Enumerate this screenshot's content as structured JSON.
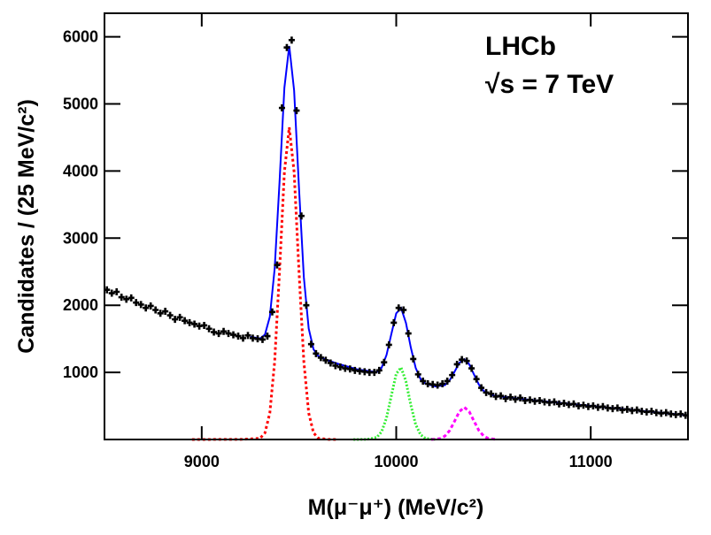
{
  "chart_data": {
    "type": "scatter",
    "x_label": "M(μ⁻μ⁺) (MeV/c²)",
    "y_label": "Candidates / (25 MeV/c²)",
    "annotations": [
      "LHCb",
      "√s = 7 TeV"
    ],
    "xlim": [
      8500,
      11500
    ],
    "ylim": [
      0,
      6350
    ],
    "xticks": [
      9000,
      10000,
      11000
    ],
    "yticks": [
      1000,
      2000,
      3000,
      4000,
      5000,
      6000
    ],
    "series": [
      {
        "type": "points",
        "color": "#000000",
        "x": [
          8512.5,
          8537.5,
          8562.5,
          8587.5,
          8612.5,
          8637.5,
          8662.5,
          8687.5,
          8712.5,
          8737.5,
          8762.5,
          8787.5,
          8812.5,
          8837.5,
          8862.5,
          8887.5,
          8912.5,
          8937.5,
          8962.5,
          8987.5,
          9012.5,
          9037.5,
          9062.5,
          9087.5,
          9112.5,
          9137.5,
          9162.5,
          9187.5,
          9212.5,
          9237.5,
          9262.5,
          9287.5,
          9312.5,
          9337.5,
          9362.5,
          9387.5,
          9412.5,
          9437.5,
          9462.5,
          9487.5,
          9512.5,
          9537.5,
          9562.5,
          9587.5,
          9612.5,
          9637.5,
          9662.5,
          9687.5,
          9712.5,
          9737.5,
          9762.5,
          9787.5,
          9812.5,
          9837.5,
          9862.5,
          9887.5,
          9912.5,
          9937.5,
          9962.5,
          9987.5,
          10012.5,
          10037.5,
          10062.5,
          10087.5,
          10112.5,
          10137.5,
          10162.5,
          10187.5,
          10212.5,
          10237.5,
          10262.5,
          10287.5,
          10312.5,
          10337.5,
          10362.5,
          10387.5,
          10412.5,
          10437.5,
          10462.5,
          10487.5,
          10512.5,
          10537.5,
          10562.5,
          10587.5,
          10612.5,
          10637.5,
          10662.5,
          10687.5,
          10712.5,
          10737.5,
          10762.5,
          10787.5,
          10812.5,
          10837.5,
          10862.5,
          10887.5,
          10912.5,
          10937.5,
          10962.5,
          10987.5,
          11012.5,
          11037.5,
          11062.5,
          11087.5,
          11112.5,
          11137.5,
          11162.5,
          11187.5,
          11212.5,
          11237.5,
          11262.5,
          11287.5,
          11312.5,
          11337.5,
          11362.5,
          11387.5,
          11412.5,
          11437.5,
          11462.5,
          11487.5
        ],
        "values": [
          2230,
          2180,
          2200,
          2120,
          2090,
          2110,
          2040,
          2010,
          1960,
          1990,
          1930,
          1880,
          1910,
          1850,
          1790,
          1820,
          1770,
          1740,
          1720,
          1690,
          1700,
          1650,
          1600,
          1580,
          1610,
          1580,
          1560,
          1540,
          1510,
          1550,
          1510,
          1500,
          1490,
          1540,
          1900,
          2600,
          4940,
          5840,
          5950,
          4900,
          3330,
          2000,
          1420,
          1280,
          1220,
          1180,
          1140,
          1100,
          1080,
          1060,
          1050,
          1030,
          1020,
          1010,
          1000,
          1000,
          1030,
          1150,
          1410,
          1740,
          1960,
          1930,
          1580,
          1200,
          970,
          870,
          830,
          820,
          810,
          830,
          870,
          960,
          1120,
          1190,
          1170,
          1060,
          900,
          770,
          700,
          680,
          640,
          650,
          610,
          630,
          600,
          620,
          580,
          590,
          570,
          580,
          560,
          550,
          560,
          530,
          540,
          520,
          530,
          500,
          510,
          490,
          500,
          480,
          490,
          470,
          460,
          470,
          440,
          450,
          430,
          440,
          420,
          410,
          420,
          400,
          390,
          400,
          380,
          370,
          380,
          360
        ]
      },
      {
        "type": "line",
        "color": "#0000ff",
        "dash": "none",
        "x": [
          9250,
          9300,
          9325,
          9350,
          9375,
          9400,
          9425,
          9450,
          9475,
          9500,
          9525,
          9550,
          9575,
          9600,
          9650,
          9700,
          9800,
          9900,
          9925,
          9950,
          9975,
          10000,
          10025,
          10050,
          10075,
          10100,
          10125,
          10150,
          10200,
          10250,
          10275,
          10300,
          10325,
          10350,
          10375,
          10400,
          10425,
          10450,
          10500,
          10600,
          10800,
          11000,
          11250,
          11500
        ],
        "values": [
          1530,
          1505,
          1562,
          1827,
          2547,
          3834,
          5240,
          5862,
          5198,
          3750,
          2418,
          1653,
          1343,
          1241,
          1176,
          1128,
          1044,
          1003,
          1070,
          1258,
          1573,
          1879,
          1959,
          1737,
          1370,
          1067,
          901,
          833,
          791,
          810,
          883,
          1011,
          1144,
          1196,
          1122,
          967,
          817,
          722,
          653,
          618,
          556,
          500,
          430,
          360
        ]
      },
      {
        "type": "line",
        "color": "#ff0000",
        "dash": "3 3",
        "x": [
          8950,
          9200,
          9250,
          9300,
          9325,
          9350,
          9375,
          9400,
          9425,
          9450,
          9475,
          9500,
          9525,
          9550,
          9575,
          9600,
          9650,
          9700
        ],
        "values": [
          0,
          2,
          8,
          18,
          98,
          394,
          1160,
          2510,
          3985,
          4650,
          3985,
          2510,
          1160,
          394,
          98,
          18,
          2,
          0
        ]
      },
      {
        "type": "line",
        "color": "#33ee33",
        "dash": "2 2",
        "x": [
          9780,
          9850,
          9900,
          9925,
          9950,
          9975,
          10000,
          10025,
          10050,
          10075,
          10100,
          10125,
          10150,
          10200
        ],
        "values": [
          0,
          2,
          31,
          116,
          322,
          655,
          979,
          1073,
          865,
          512,
          223,
          71,
          17,
          0
        ]
      },
      {
        "type": "line",
        "color": "#ff00ff",
        "dash": "4 3",
        "x": [
          10180,
          10225,
          10250,
          10275,
          10300,
          10325,
          10350,
          10375,
          10400,
          10425,
          10450,
          10475,
          10520
        ],
        "values": [
          0,
          14,
          50,
          134,
          273,
          417,
          480,
          417,
          273,
          134,
          50,
          14,
          0
        ]
      }
    ]
  }
}
